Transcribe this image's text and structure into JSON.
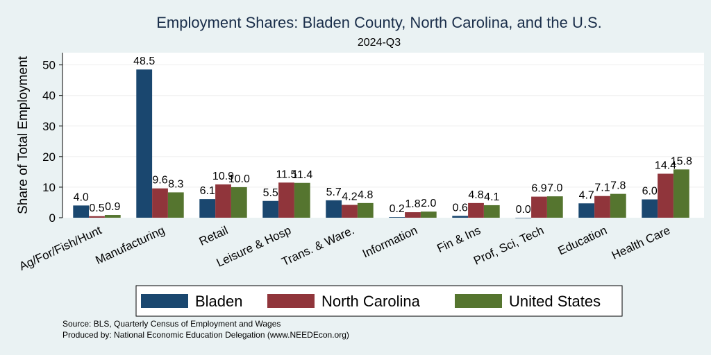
{
  "chart_data": {
    "type": "bar",
    "title": "Employment Shares: Bladen County, North Carolina, and the U.S.",
    "subtitle": "2024-Q3",
    "ylabel": "Share of Total Employment",
    "xlabel": "",
    "ylim": [
      0,
      54
    ],
    "yticks": [
      0,
      10,
      20,
      30,
      40,
      50
    ],
    "legend_position": "bottom",
    "grid": true,
    "categories": [
      "Ag/For/Fish/Hunt",
      "Manufacturing",
      "Retail",
      "Leisure & Hosp",
      "Trans. & Ware.",
      "Information",
      "Fin & Ins",
      "Prof, Sci, Tech",
      "Education",
      "Health Care"
    ],
    "series": [
      {
        "name": "Bladen",
        "color": "#1a476f",
        "values": [
          4.0,
          48.5,
          6.1,
          5.5,
          5.7,
          0.2,
          0.6,
          0.0,
          4.7,
          6.0
        ]
      },
      {
        "name": "North Carolina",
        "color": "#90353b",
        "values": [
          0.5,
          9.6,
          10.9,
          11.5,
          4.2,
          1.8,
          4.8,
          6.9,
          7.1,
          14.4
        ]
      },
      {
        "name": "United States",
        "color": "#55752f",
        "values": [
          0.9,
          8.3,
          10.0,
          11.4,
          4.8,
          2.0,
          4.1,
          7.0,
          7.8,
          15.8
        ]
      }
    ]
  },
  "footer": {
    "source": "Source: BLS, Quarterly Census of Employment and Wages",
    "produced": "Produced by: National Economic Education Delegation (www.NEEDEcon.org)"
  }
}
